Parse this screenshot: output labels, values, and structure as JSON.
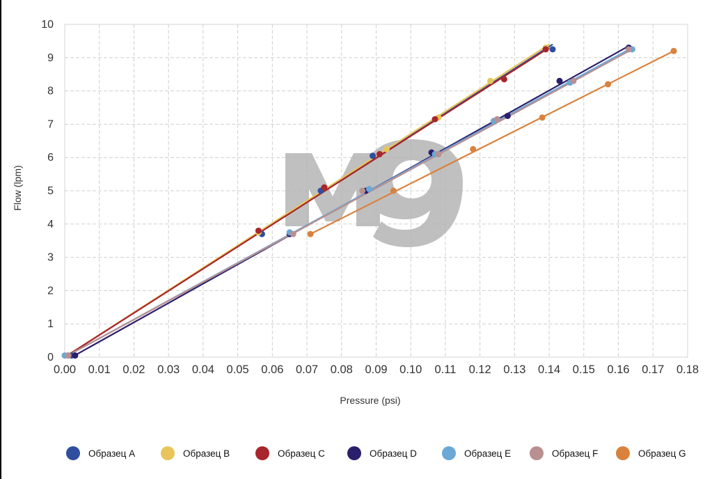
{
  "chart_data": {
    "type": "scatter",
    "xlabel": "Pressure (psi)",
    "ylabel": "Flow (lpm)",
    "xlim": [
      0,
      0.18
    ],
    "ylim": [
      0,
      10
    ],
    "x_ticks": [
      "0.00",
      "0.01",
      "0.02",
      "0.03",
      "0.04",
      "0.05",
      "0.06",
      "0.07",
      "0.08",
      "0.09",
      "0.10",
      "0.11",
      "0.12",
      "0.13",
      "0.14",
      "0.15",
      "0.16",
      "0.17",
      "0.18"
    ],
    "y_ticks": [
      "0",
      "1",
      "2",
      "3",
      "4",
      "5",
      "6",
      "7",
      "8",
      "9",
      "10"
    ],
    "grid": true,
    "legend_position": "bottom",
    "trendlines": true,
    "watermark": "M9",
    "series": [
      {
        "name": "Образец A",
        "color": "#2e4f9e",
        "points": [
          [
            0.002,
            0.05
          ],
          [
            0.057,
            3.7
          ],
          [
            0.074,
            5.0
          ],
          [
            0.089,
            6.05
          ],
          [
            0.141,
            9.25
          ]
        ],
        "trend": [
          [
            0.0,
            0.0
          ],
          [
            0.141,
            9.4
          ]
        ]
      },
      {
        "name": "Образец B",
        "color": "#e8c55a",
        "points": [
          [
            0.0,
            0.05
          ],
          [
            0.056,
            3.75
          ],
          [
            0.093,
            6.25
          ],
          [
            0.108,
            7.2
          ],
          [
            0.123,
            8.3
          ],
          [
            0.139,
            9.3
          ]
        ],
        "trend": [
          [
            0.0,
            0.0
          ],
          [
            0.14,
            9.4
          ]
        ]
      },
      {
        "name": "Образец C",
        "color": "#a8262e",
        "points": [
          [
            0.001,
            0.05
          ],
          [
            0.056,
            3.8
          ],
          [
            0.075,
            5.1
          ],
          [
            0.091,
            6.1
          ],
          [
            0.107,
            7.15
          ],
          [
            0.127,
            8.35
          ],
          [
            0.139,
            9.25
          ]
        ],
        "trend": [
          [
            0.0,
            0.0
          ],
          [
            0.14,
            9.3
          ]
        ]
      },
      {
        "name": "Образец D",
        "color": "#2a1f6b",
        "points": [
          [
            0.003,
            0.05
          ],
          [
            0.065,
            3.7
          ],
          [
            0.087,
            5.0
          ],
          [
            0.106,
            6.15
          ],
          [
            0.128,
            7.25
          ],
          [
            0.143,
            8.3
          ],
          [
            0.163,
            9.3
          ]
        ],
        "trend": [
          [
            0.002,
            0.0
          ],
          [
            0.163,
            9.35
          ]
        ]
      },
      {
        "name": "Образец E",
        "color": "#6aa8d6",
        "points": [
          [
            0.0,
            0.05
          ],
          [
            0.065,
            3.75
          ],
          [
            0.088,
            5.05
          ],
          [
            0.107,
            6.1
          ],
          [
            0.124,
            7.1
          ],
          [
            0.146,
            8.25
          ],
          [
            0.164,
            9.25
          ]
        ],
        "trend": [
          [
            0.0,
            0.0
          ],
          [
            0.164,
            9.3
          ]
        ]
      },
      {
        "name": "Образец F",
        "color": "#b89090",
        "points": [
          [
            0.001,
            0.05
          ],
          [
            0.066,
            3.7
          ],
          [
            0.086,
            5.0
          ],
          [
            0.108,
            6.1
          ],
          [
            0.125,
            7.15
          ],
          [
            0.147,
            8.3
          ],
          [
            0.163,
            9.25
          ]
        ],
        "trend": [
          [
            0.0,
            0.0
          ],
          [
            0.164,
            9.25
          ]
        ]
      },
      {
        "name": "Образец G",
        "color": "#d9823e",
        "points": [
          [
            0.071,
            3.7
          ],
          [
            0.095,
            5.0
          ],
          [
            0.118,
            6.25
          ],
          [
            0.138,
            7.2
          ],
          [
            0.157,
            8.2
          ],
          [
            0.176,
            9.2
          ]
        ],
        "trend": [
          [
            0.071,
            3.7
          ],
          [
            0.176,
            9.2
          ]
        ]
      }
    ]
  }
}
